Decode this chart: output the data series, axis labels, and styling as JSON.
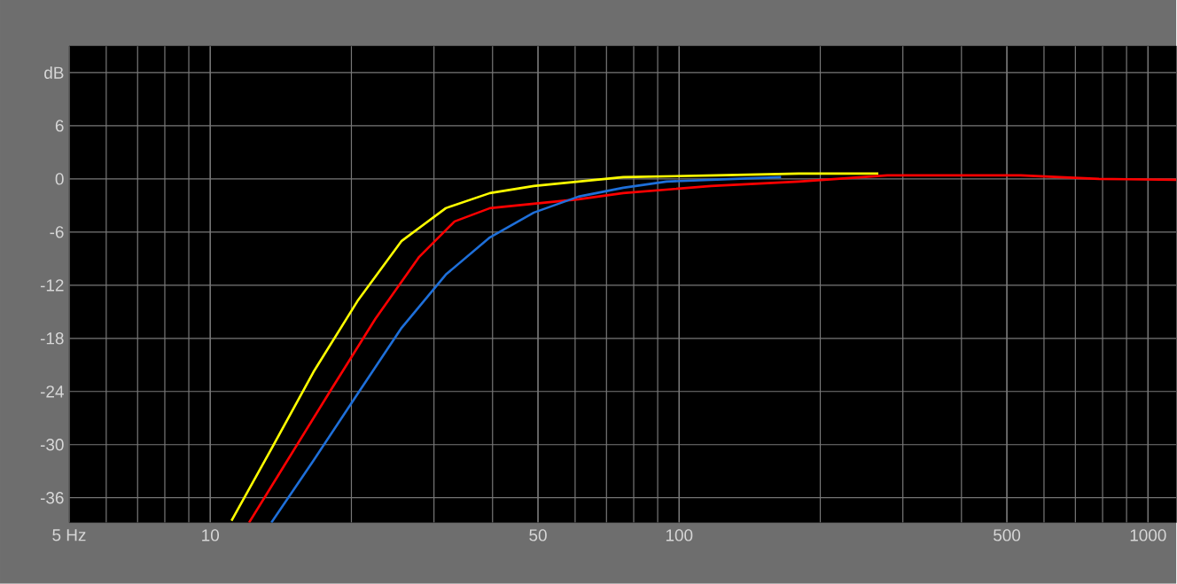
{
  "chart_data": {
    "type": "line",
    "log": "x",
    "grid": true,
    "line_style": "solid",
    "marker": "none",
    "xlim": [
      5,
      1150
    ],
    "ylim": [
      -38.8,
      15
    ],
    "xticks": [
      {
        "value": 5,
        "label": "5 Hz"
      },
      10,
      50,
      100,
      500,
      1000
    ],
    "yticks": [
      -36,
      -30,
      -24,
      -18,
      -12,
      -6,
      0,
      6,
      {
        "value": 12,
        "label": "dB"
      }
    ],
    "series": [
      {
        "color": "#ffff00",
        "x": [
          11.1,
          13.4,
          16.6,
          20.6,
          25.6,
          31.8,
          39.5,
          49,
          61,
          76,
          120,
          180,
          266
        ],
        "values": [
          -38.6,
          -30.8,
          -21.8,
          -13.8,
          -7,
          -3.3,
          -1.6,
          -0.8,
          -0.3,
          0.2,
          0.4,
          0.6,
          0.6
        ]
      },
      {
        "color": "#ff0000",
        "x": [
          12.1,
          14.6,
          18.1,
          22.5,
          27.9,
          33.2,
          39.5,
          49,
          61,
          76,
          117,
          180,
          278,
          535,
          786,
          1150
        ],
        "values": [
          -38.8,
          -31.8,
          -23.8,
          -15.8,
          -8.8,
          -4.8,
          -3.3,
          -2.8,
          -2.3,
          -1.6,
          -0.8,
          -0.3,
          0.4,
          0.4,
          0,
          -0.1
        ]
      },
      {
        "color": "#1e6fd9",
        "x": [
          13.5,
          16.6,
          20.6,
          25.6,
          31.8,
          39.5,
          49,
          61,
          76,
          94,
          117,
          165
        ],
        "values": [
          -38.8,
          -31.8,
          -24.3,
          -16.8,
          -10.8,
          -6.6,
          -3.8,
          -2,
          -1,
          -0.3,
          -0.1,
          0.2
        ]
      }
    ]
  }
}
